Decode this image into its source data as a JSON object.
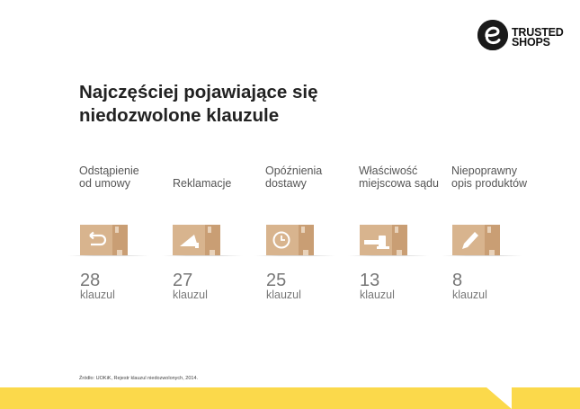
{
  "logo": {
    "line1": "TRUSTED",
    "line2": "SHOPS"
  },
  "headline": {
    "line1": "Najczęściej pojawiające się",
    "line2": "niedozwolone klauzule"
  },
  "categories": [
    {
      "label": "Odstąpienie\nod umowy",
      "count": "28",
      "unit": "klauzul",
      "icon": "return-arrow-icon"
    },
    {
      "label": "Reklamacje",
      "count": "27",
      "unit": "klauzul",
      "icon": "megaphone-icon"
    },
    {
      "label": "Opóźnienia\ndostawy",
      "count": "25",
      "unit": "klauzul",
      "icon": "clock-icon"
    },
    {
      "label": "Właściwość\nmiejscowa sądu",
      "count": "13",
      "unit": "klauzul",
      "icon": "gavel-icon"
    },
    {
      "label": "Niepoprawny\nopis produktów",
      "count": "8",
      "unit": "klauzul",
      "icon": "pencil-icon"
    }
  ],
  "source": "Źródło: UOKiK, Rejestr klauzul niedozwolonych, 2014.",
  "colors": {
    "box": "#d8b48e",
    "box_dark": "#c99e74",
    "accent_yellow": "#fbd94b"
  }
}
